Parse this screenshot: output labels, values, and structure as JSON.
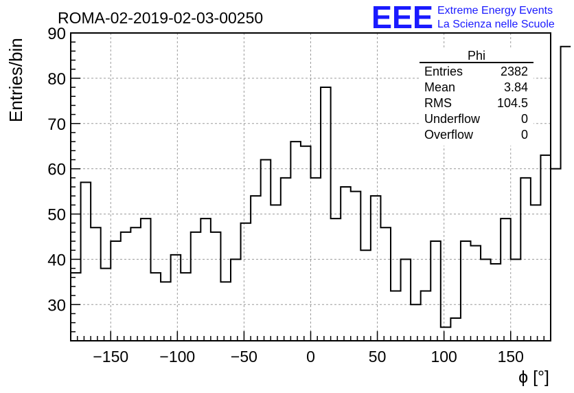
{
  "header": {
    "run_title": "ROMA-02-2019-02-03-00250",
    "logo_text": "EEE",
    "org_line1": "Extreme Energy Events",
    "org_line2": "La Scienza nelle Scuole",
    "logo_color": "#1a1aff"
  },
  "stats_box": {
    "title": "Phi",
    "rows": [
      {
        "label": "Entries",
        "value": "2382"
      },
      {
        "label": "Mean",
        "value": "3.84"
      },
      {
        "label": "RMS",
        "value": "104.5"
      },
      {
        "label": "Underflow",
        "value": "0"
      },
      {
        "label": "Overflow",
        "value": "0"
      }
    ]
  },
  "chart_data": {
    "type": "histogram",
    "title": "ROMA-02-2019-02-03-00250",
    "xlabel": "ϕ [°]",
    "ylabel": "Entries/bin",
    "xlim": [
      -180,
      180
    ],
    "ylim": [
      22,
      90
    ],
    "bin_width": 7.5,
    "x_ticks": [
      -150,
      -100,
      -50,
      0,
      50,
      100,
      150
    ],
    "x_tick_labels": [
      "−150",
      "−100",
      "−50",
      "0",
      "50",
      "100",
      "150"
    ],
    "y_ticks": [
      30,
      40,
      50,
      60,
      70,
      80,
      90
    ],
    "y_tick_labels": [
      "30",
      "40",
      "50",
      "60",
      "70",
      "80",
      "90"
    ],
    "grid": true,
    "line_color": "#000000",
    "values": [
      37,
      57,
      47,
      38,
      44,
      46,
      47,
      49,
      37,
      35,
      41,
      37,
      46,
      49,
      46,
      35,
      40,
      48,
      54,
      62,
      52,
      58,
      66,
      65,
      58,
      78,
      49,
      56,
      55,
      42,
      54,
      47,
      33,
      40,
      30,
      33,
      44,
      25,
      27,
      44,
      43,
      40,
      39,
      49,
      40,
      58,
      52,
      63,
      60,
      87
    ]
  }
}
